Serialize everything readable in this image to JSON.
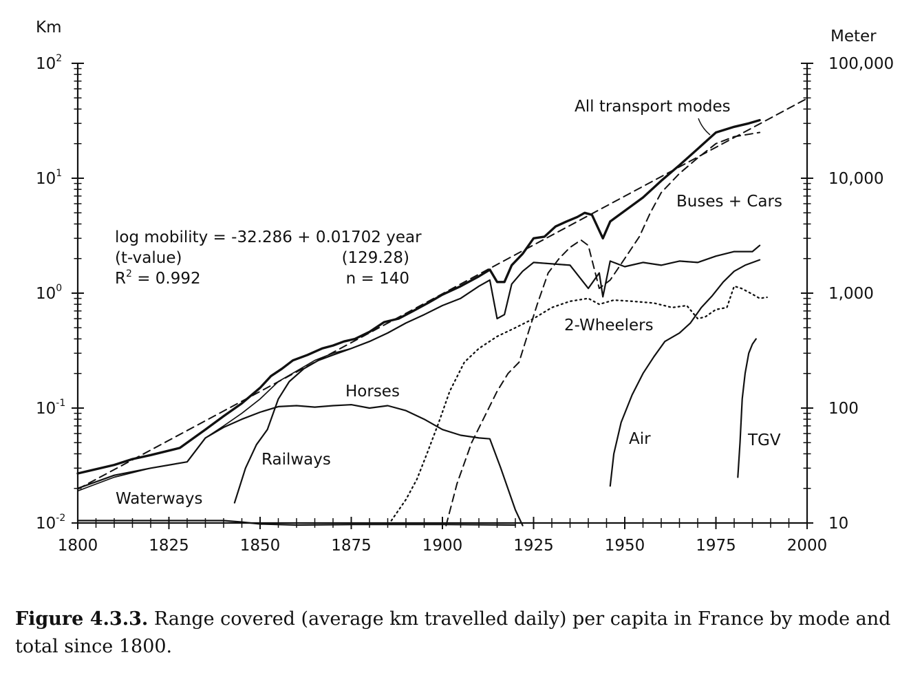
{
  "chart_data": {
    "type": "line",
    "title": "",
    "y_scale": "log",
    "xlim": [
      1800,
      2000
    ],
    "ylim": [
      0.01,
      100
    ],
    "xticks": [
      1800,
      1825,
      1850,
      1875,
      1900,
      1925,
      1950,
      1975,
      2000
    ],
    "y_left_label": "Km",
    "y_left_ticks": [
      {
        "value": 0.01,
        "base": "10",
        "exp": "-2"
      },
      {
        "value": 0.1,
        "base": "10",
        "exp": "-1"
      },
      {
        "value": 1,
        "base": "10",
        "exp": "0"
      },
      {
        "value": 10,
        "base": "10",
        "exp": "1"
      },
      {
        "value": 100,
        "base": "10",
        "exp": "2"
      }
    ],
    "y_right_label": "Meter",
    "y_right_ticks": [
      {
        "value": 0.01,
        "label": "10"
      },
      {
        "value": 0.1,
        "label": "100"
      },
      {
        "value": 1,
        "label": "1,000"
      },
      {
        "value": 10,
        "label": "10,000"
      },
      {
        "value": 100,
        "label": "100,000"
      }
    ],
    "annotation": {
      "line1_left": "log mobility = -32.286 + 0.01702 year",
      "line2_left": "(t-value)",
      "line2_right": "(129.28)",
      "line3_left_base": "R",
      "line3_left_sup": "2",
      "line3_left_rest": " = 0.992",
      "line3_right": "n = 140"
    },
    "series": [
      {
        "name": "All transport modes",
        "label": "All transport modes",
        "style": "bold",
        "points": [
          [
            1800,
            0.027
          ],
          [
            1810,
            0.032
          ],
          [
            1815,
            0.036
          ],
          [
            1820,
            0.039
          ],
          [
            1828,
            0.045
          ],
          [
            1835,
            0.065
          ],
          [
            1840,
            0.085
          ],
          [
            1845,
            0.11
          ],
          [
            1850,
            0.15
          ],
          [
            1853,
            0.19
          ],
          [
            1856,
            0.22
          ],
          [
            1859,
            0.26
          ],
          [
            1863,
            0.29
          ],
          [
            1867,
            0.33
          ],
          [
            1870,
            0.35
          ],
          [
            1873,
            0.38
          ],
          [
            1876,
            0.4
          ],
          [
            1880,
            0.46
          ],
          [
            1884,
            0.56
          ],
          [
            1888,
            0.6
          ],
          [
            1892,
            0.7
          ],
          [
            1896,
            0.82
          ],
          [
            1900,
            0.97
          ],
          [
            1905,
            1.15
          ],
          [
            1910,
            1.4
          ],
          [
            1913,
            1.6
          ],
          [
            1915,
            1.25
          ],
          [
            1917,
            1.25
          ],
          [
            1919,
            1.75
          ],
          [
            1922,
            2.2
          ],
          [
            1925,
            3.0
          ],
          [
            1928,
            3.1
          ],
          [
            1931,
            3.8
          ],
          [
            1934,
            4.2
          ],
          [
            1937,
            4.6
          ],
          [
            1939,
            5.0
          ],
          [
            1941,
            4.8
          ],
          [
            1944,
            3.0
          ],
          [
            1946,
            4.2
          ],
          [
            1950,
            5.2
          ],
          [
            1955,
            6.8
          ],
          [
            1960,
            9.5
          ],
          [
            1965,
            13
          ],
          [
            1970,
            18
          ],
          [
            1975,
            25
          ],
          [
            1980,
            28
          ],
          [
            1984,
            30
          ],
          [
            1987,
            32
          ]
        ]
      },
      {
        "name": "Trend",
        "label": "",
        "style": "dashed",
        "points": [
          [
            1800,
            0.0197
          ],
          [
            2000,
            49.4
          ]
        ]
      },
      {
        "name": "Total (thin)",
        "label": "",
        "style": "thin",
        "points": [
          [
            1800,
            0.019
          ],
          [
            1810,
            0.025
          ],
          [
            1820,
            0.03
          ],
          [
            1830,
            0.034
          ],
          [
            1835,
            0.055
          ],
          [
            1840,
            0.07
          ],
          [
            1845,
            0.09
          ],
          [
            1850,
            0.12
          ],
          [
            1855,
            0.17
          ],
          [
            1860,
            0.21
          ],
          [
            1865,
            0.26
          ],
          [
            1870,
            0.3
          ],
          [
            1875,
            0.33
          ],
          [
            1880,
            0.38
          ],
          [
            1885,
            0.45
          ],
          [
            1890,
            0.55
          ],
          [
            1895,
            0.65
          ],
          [
            1900,
            0.78
          ],
          [
            1905,
            0.9
          ],
          [
            1910,
            1.15
          ],
          [
            1913,
            1.3
          ],
          [
            1915,
            0.6
          ],
          [
            1917,
            0.65
          ],
          [
            1919,
            1.2
          ],
          [
            1922,
            1.55
          ],
          [
            1925,
            1.85
          ],
          [
            1930,
            1.8
          ],
          [
            1935,
            1.75
          ],
          [
            1940,
            1.1
          ],
          [
            1943,
            1.5
          ],
          [
            1944,
            0.93
          ],
          [
            1946,
            1.9
          ],
          [
            1950,
            1.7
          ],
          [
            1955,
            1.85
          ],
          [
            1960,
            1.75
          ],
          [
            1965,
            1.9
          ],
          [
            1970,
            1.85
          ],
          [
            1975,
            2.1
          ],
          [
            1980,
            2.3
          ],
          [
            1985,
            2.3
          ],
          [
            1987,
            2.6
          ]
        ]
      },
      {
        "name": "Railways",
        "label": "Railways",
        "style": "solid",
        "points": [
          [
            1843,
            0.015
          ],
          [
            1846,
            0.03
          ],
          [
            1849,
            0.048
          ],
          [
            1852,
            0.065
          ],
          [
            1855,
            0.12
          ],
          [
            1858,
            0.17
          ],
          [
            1862,
            0.22
          ],
          [
            1866,
            0.26
          ],
          [
            1870,
            0.29
          ],
          [
            1875,
            0.33
          ],
          [
            1880,
            0.38
          ],
          [
            1885,
            0.45
          ],
          [
            1890,
            0.55
          ],
          [
            1895,
            0.65
          ],
          [
            1900,
            0.78
          ],
          [
            1905,
            0.9
          ],
          [
            1910,
            1.15
          ],
          [
            1913,
            1.3
          ],
          [
            1915,
            0.6
          ],
          [
            1917,
            0.65
          ],
          [
            1919,
            1.2
          ],
          [
            1922,
            1.55
          ],
          [
            1925,
            1.85
          ],
          [
            1930,
            1.8
          ],
          [
            1935,
            1.75
          ],
          [
            1940,
            1.1
          ],
          [
            1943,
            1.5
          ],
          [
            1944,
            0.93
          ],
          [
            1946,
            1.9
          ],
          [
            1950,
            1.7
          ],
          [
            1955,
            1.85
          ],
          [
            1960,
            1.75
          ],
          [
            1965,
            1.9
          ],
          [
            1970,
            1.85
          ],
          [
            1975,
            2.1
          ],
          [
            1980,
            2.3
          ],
          [
            1985,
            2.3
          ],
          [
            1987,
            2.6
          ]
        ]
      },
      {
        "name": "Horses",
        "label": "Horses",
        "style": "solid",
        "points": [
          [
            1800,
            0.02
          ],
          [
            1810,
            0.026
          ],
          [
            1820,
            0.03
          ],
          [
            1830,
            0.034
          ],
          [
            1835,
            0.055
          ],
          [
            1840,
            0.068
          ],
          [
            1845,
            0.08
          ],
          [
            1850,
            0.092
          ],
          [
            1855,
            0.103
          ],
          [
            1860,
            0.105
          ],
          [
            1865,
            0.102
          ],
          [
            1870,
            0.105
          ],
          [
            1875,
            0.107
          ],
          [
            1880,
            0.1
          ],
          [
            1885,
            0.105
          ],
          [
            1890,
            0.095
          ],
          [
            1895,
            0.08
          ],
          [
            1900,
            0.065
          ],
          [
            1905,
            0.058
          ],
          [
            1910,
            0.055
          ],
          [
            1913,
            0.054
          ],
          [
            1916,
            0.03
          ],
          [
            1920,
            0.013
          ],
          [
            1922,
            0.0095
          ]
        ]
      },
      {
        "name": "Waterways",
        "label": "Waterways",
        "style": "solid",
        "points": [
          [
            1800,
            0.0105
          ],
          [
            1820,
            0.0105
          ],
          [
            1840,
            0.0105
          ],
          [
            1845,
            0.0102
          ],
          [
            1850,
            0.0098
          ],
          [
            1860,
            0.0096
          ],
          [
            1875,
            0.0097
          ],
          [
            1900,
            0.0097
          ],
          [
            1920,
            0.0096
          ]
        ]
      },
      {
        "name": "Buses + Cars",
        "label": "Buses + Cars",
        "style": "dashed",
        "points": [
          [
            1901,
            0.0095
          ],
          [
            1904,
            0.022
          ],
          [
            1908,
            0.05
          ],
          [
            1912,
            0.09
          ],
          [
            1915,
            0.14
          ],
          [
            1918,
            0.2
          ],
          [
            1921,
            0.25
          ],
          [
            1923,
            0.4
          ],
          [
            1926,
            0.8
          ],
          [
            1929,
            1.5
          ],
          [
            1932,
            2.0
          ],
          [
            1935,
            2.5
          ],
          [
            1938,
            2.9
          ],
          [
            1940,
            2.6
          ],
          [
            1943,
            1.1
          ],
          [
            1946,
            1.3
          ],
          [
            1950,
            2.0
          ],
          [
            1954,
            3.1
          ],
          [
            1957,
            5.0
          ],
          [
            1960,
            7.5
          ],
          [
            1965,
            11
          ],
          [
            1970,
            15
          ],
          [
            1975,
            20
          ],
          [
            1980,
            23
          ],
          [
            1987,
            25
          ]
        ]
      },
      {
        "name": "2-Wheelers",
        "label": "2-Wheelers",
        "style": "dotted",
        "points": [
          [
            1886,
            0.0105
          ],
          [
            1890,
            0.016
          ],
          [
            1893,
            0.024
          ],
          [
            1896,
            0.042
          ],
          [
            1899,
            0.075
          ],
          [
            1902,
            0.14
          ],
          [
            1906,
            0.25
          ],
          [
            1910,
            0.33
          ],
          [
            1915,
            0.42
          ],
          [
            1920,
            0.5
          ],
          [
            1925,
            0.6
          ],
          [
            1930,
            0.75
          ],
          [
            1935,
            0.85
          ],
          [
            1940,
            0.9
          ],
          [
            1943,
            0.8
          ],
          [
            1947,
            0.87
          ],
          [
            1952,
            0.85
          ],
          [
            1958,
            0.82
          ],
          [
            1963,
            0.75
          ],
          [
            1967,
            0.78
          ],
          [
            1970,
            0.6
          ],
          [
            1972,
            0.62
          ],
          [
            1975,
            0.72
          ],
          [
            1978,
            0.75
          ],
          [
            1980,
            1.15
          ],
          [
            1982,
            1.1
          ],
          [
            1985,
            0.98
          ],
          [
            1987,
            0.9
          ],
          [
            1989,
            0.92
          ]
        ]
      },
      {
        "name": "Air",
        "label": "Air",
        "style": "solid",
        "points": [
          [
            1946,
            0.021
          ],
          [
            1947,
            0.04
          ],
          [
            1949,
            0.075
          ],
          [
            1952,
            0.13
          ],
          [
            1955,
            0.2
          ],
          [
            1958,
            0.28
          ],
          [
            1961,
            0.38
          ],
          [
            1965,
            0.45
          ],
          [
            1968,
            0.55
          ],
          [
            1971,
            0.75
          ],
          [
            1974,
            0.95
          ],
          [
            1977,
            1.25
          ],
          [
            1980,
            1.55
          ],
          [
            1983,
            1.75
          ],
          [
            1987,
            1.95
          ]
        ]
      },
      {
        "name": "TGV",
        "label": "TGV",
        "style": "solid",
        "points": [
          [
            1981,
            0.025
          ],
          [
            1981.6,
            0.05
          ],
          [
            1982.2,
            0.12
          ],
          [
            1983,
            0.2
          ],
          [
            1984,
            0.3
          ],
          [
            1985,
            0.36
          ],
          [
            1986,
            0.4
          ]
        ]
      }
    ]
  },
  "caption": {
    "figure_number": "Figure 4.3.3.",
    "text": " Range covered (average km travelled daily) per capita in France by mode and total since 1800."
  }
}
